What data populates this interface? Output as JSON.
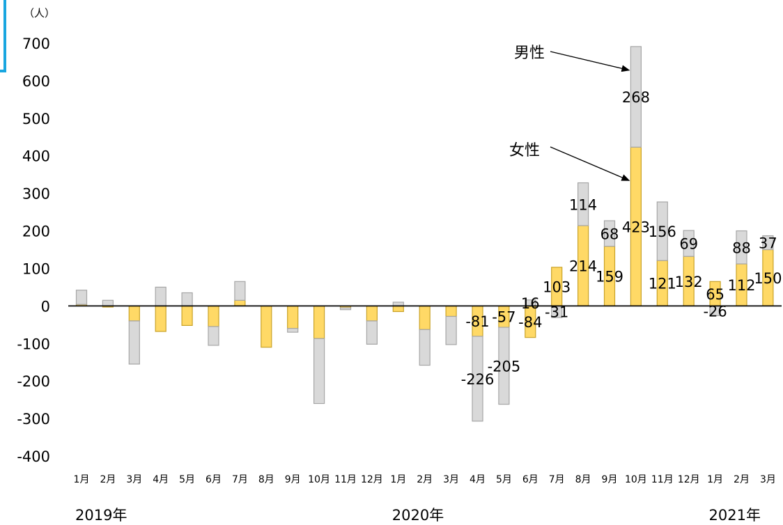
{
  "colors": {
    "female": "#ffd966",
    "female_stroke": "#c9a227",
    "male": "#d9d9d9",
    "male_stroke": "#a6a6a6",
    "axis": "#000000",
    "accent": "#19a6e0"
  },
  "chart_data": {
    "type": "bar",
    "stacked": true,
    "unit_label": "（人）",
    "ylim": [
      -400,
      700
    ],
    "yticks": [
      "700",
      "600",
      "500",
      "400",
      "300",
      "200",
      "100",
      "0",
      "-100",
      "-200",
      "-300",
      "-400"
    ],
    "categories": [
      "1月",
      "2月",
      "3月",
      "4月",
      "5月",
      "6月",
      "7月",
      "8月",
      "9月",
      "10月",
      "11月",
      "12月",
      "1月",
      "2月",
      "3月",
      "4月",
      "5月",
      "6月",
      "7月",
      "8月",
      "9月",
      "10月",
      "11月",
      "12月",
      "1月",
      "2月",
      "3月"
    ],
    "years": [
      "2019年",
      "2020年",
      "2021年"
    ],
    "series": [
      {
        "name": "女性",
        "values": [
          4,
          -3,
          -40,
          -68,
          -52,
          -55,
          15,
          -110,
          -60,
          -87,
          -5,
          -40,
          -15,
          -63,
          -28,
          -81,
          -57,
          -84,
          103,
          214,
          159,
          423,
          121,
          132,
          65,
          112,
          150
        ]
      },
      {
        "name": "男性",
        "values": [
          38,
          15,
          -115,
          50,
          35,
          -50,
          50,
          0,
          -10,
          -173,
          -5,
          -62,
          10,
          -95,
          -75,
          -226,
          -205,
          16,
          -31,
          114,
          68,
          268,
          156,
          69,
          -26,
          88,
          37
        ]
      }
    ],
    "data_labels": [
      {
        "index": 15,
        "series": "女性",
        "text": "-81"
      },
      {
        "index": 15,
        "series": "男性",
        "text": "-226"
      },
      {
        "index": 16,
        "series": "女性",
        "text": "-57"
      },
      {
        "index": 16,
        "series": "男性",
        "text": "-205"
      },
      {
        "index": 17,
        "series": "女性",
        "text": "-84"
      },
      {
        "index": 17,
        "series": "男性",
        "text": "16"
      },
      {
        "index": 18,
        "series": "女性",
        "text": "103"
      },
      {
        "index": 18,
        "series": "男性",
        "text": "-31"
      },
      {
        "index": 19,
        "series": "女性",
        "text": "214"
      },
      {
        "index": 19,
        "series": "男性",
        "text": "114"
      },
      {
        "index": 20,
        "series": "女性",
        "text": "159"
      },
      {
        "index": 20,
        "series": "男性",
        "text": "68"
      },
      {
        "index": 21,
        "series": "女性",
        "text": "423"
      },
      {
        "index": 21,
        "series": "男性",
        "text": "268"
      },
      {
        "index": 22,
        "series": "女性",
        "text": "121"
      },
      {
        "index": 22,
        "series": "男性",
        "text": "156"
      },
      {
        "index": 23,
        "series": "女性",
        "text": "132"
      },
      {
        "index": 23,
        "series": "男性",
        "text": "69"
      },
      {
        "index": 24,
        "series": "女性",
        "text": "65"
      },
      {
        "index": 24,
        "series": "男性",
        "text": "-26"
      },
      {
        "index": 25,
        "series": "女性",
        "text": "112"
      },
      {
        "index": 25,
        "series": "男性",
        "text": "88"
      },
      {
        "index": 26,
        "series": "女性",
        "text": "150"
      },
      {
        "index": 26,
        "series": "男性",
        "text": "37"
      }
    ],
    "annotations": [
      {
        "text": "男性",
        "points_to": {
          "index": 21,
          "series": "男性"
        }
      },
      {
        "text": "女性",
        "points_to": {
          "index": 21,
          "series": "女性"
        }
      }
    ],
    "grid": false,
    "legend": "none"
  }
}
